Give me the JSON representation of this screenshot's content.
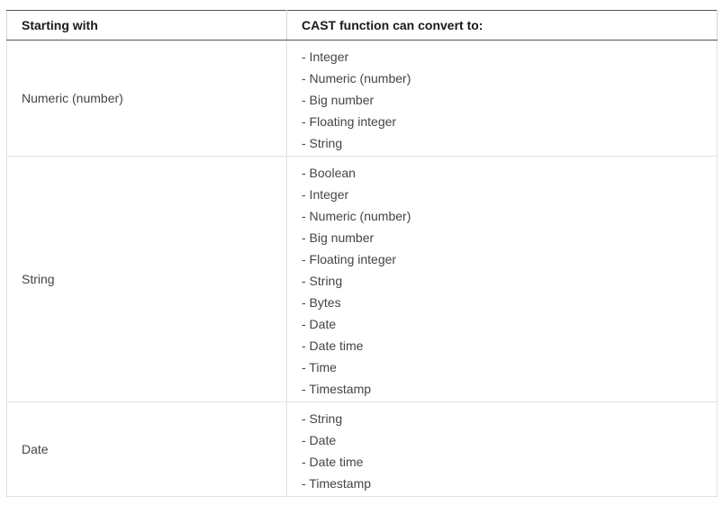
{
  "table": {
    "headers": [
      "Starting with",
      "CAST function can convert to:"
    ],
    "rows": [
      {
        "type": "Numeric (number)",
        "conversions": [
          "- Integer",
          "- Numeric (number)",
          "- Big number",
          "- Floating integer",
          "- String"
        ]
      },
      {
        "type": "String",
        "conversions": [
          "- Boolean",
          "- Integer",
          "- Numeric (number)",
          "- Big number",
          "- Floating integer",
          "- String",
          "- Bytes",
          "- Date",
          "- Date time",
          "- Time",
          "- Timestamp"
        ]
      },
      {
        "type": "Date",
        "conversions": [
          "- String",
          "- Date",
          "- Date time",
          "- Timestamp"
        ]
      }
    ]
  }
}
